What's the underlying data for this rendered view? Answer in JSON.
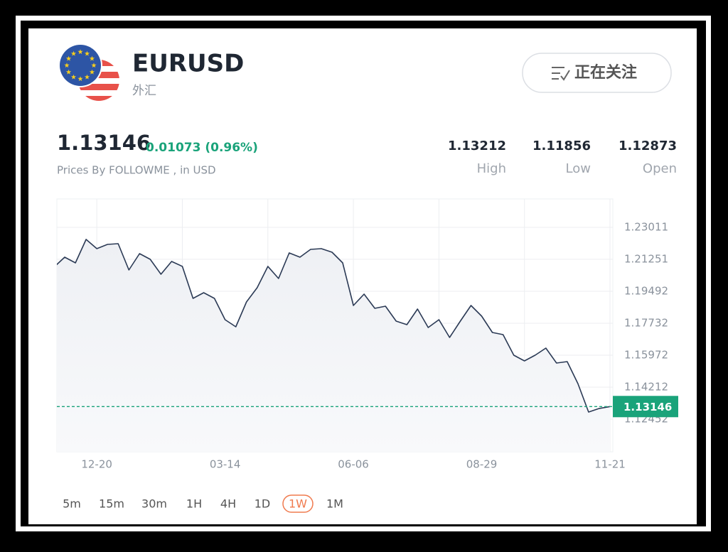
{
  "quote": {
    "symbol": "EURUSD",
    "market": "外汇",
    "follow_button": "正在关注",
    "price": "1.13146",
    "change": "0.01073 (0.96%)",
    "source": "Prices By FOLLOWME , in USD",
    "stats": [
      {
        "value": "1.13212",
        "label": "High"
      },
      {
        "value": "1.11856",
        "label": "Low"
      },
      {
        "value": "1.12873",
        "label": "Open"
      }
    ]
  },
  "chart_data": {
    "type": "line",
    "categories": [
      null,
      null,
      null,
      null,
      "12-20",
      null,
      null,
      null,
      null,
      null,
      null,
      null,
      null,
      null,
      null,
      null,
      "03-14",
      null,
      null,
      null,
      null,
      null,
      null,
      null,
      null,
      null,
      null,
      null,
      "06-06",
      null,
      null,
      null,
      null,
      null,
      null,
      null,
      null,
      null,
      null,
      null,
      "08-29",
      null,
      null,
      null,
      null,
      null,
      null,
      null,
      null,
      null,
      null,
      null,
      "11-21"
    ],
    "series": [
      {
        "color": "#2b3a55",
        "values": [
          1.20822,
          1.21369,
          1.21056,
          1.22346,
          1.21838,
          1.22073,
          1.22112,
          1.20665,
          1.21564,
          1.21252,
          1.2043,
          1.21134,
          1.2086,
          1.19101,
          1.19414,
          1.19101,
          1.17928,
          1.17537,
          1.18906,
          1.19688,
          1.20861,
          1.20196,
          1.21603,
          1.21369,
          1.21799,
          1.21838,
          1.21643,
          1.21056,
          1.1871,
          1.19336,
          1.18553,
          1.1867,
          1.1785,
          1.17654,
          1.18514,
          1.17498,
          1.17928,
          1.1695,
          1.1785,
          1.1871,
          1.18124,
          1.17224,
          1.17107,
          1.15973,
          1.1566,
          1.15973,
          1.16364,
          1.15543,
          1.15621,
          1.14409,
          1.12845,
          1.13042,
          1.13146
        ]
      }
    ],
    "ylim": [
      1.10654,
      1.24575
    ],
    "yticks": [
      1.23011,
      1.21251,
      1.19492,
      1.17732,
      1.15972,
      1.14212,
      1.12452
    ],
    "grid": true,
    "price_line": 1.13146,
    "price_line_color": "#1aa37a"
  },
  "timeframes": {
    "options": [
      "5m",
      "15m",
      "30m",
      "1H",
      "4H",
      "1D",
      "1W",
      "1M"
    ],
    "selected": "1W"
  }
}
